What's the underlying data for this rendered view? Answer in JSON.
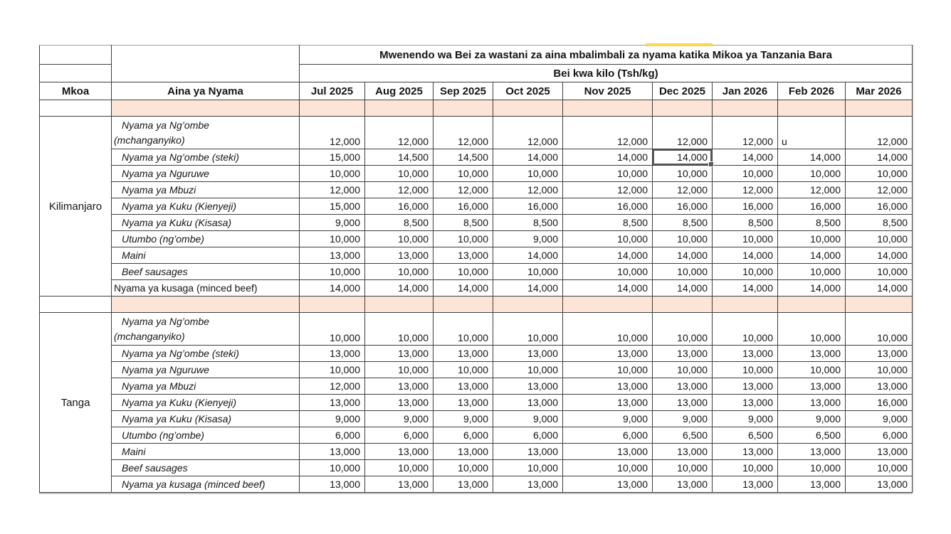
{
  "title": "Mwenendo wa Bei za wastani za aina mbalimbali za nyama katika Mikoa ya Tanzania Bara",
  "subtitle": "Bei kwa kilo (Tsh/kg)",
  "columns": {
    "region": "Mkoa",
    "item": "Aina ya Nyama",
    "months": [
      "Jul 2025",
      "Aug 2025",
      "Sep 2025",
      "Oct 2025",
      "Nov 2025",
      "Dec 2025",
      "Jan 2026",
      "Feb 2026",
      "Mar 2026"
    ]
  },
  "colors": {
    "band_fill": "#FCE4D6",
    "highlight_yellow": "#FFD951",
    "selection_border": "#595959",
    "grid_border": "#3f3f3f"
  },
  "selection": {
    "region_index": 0,
    "item_index": 1,
    "month_index": 5
  },
  "regions": [
    {
      "name": "Kilimanjaro",
      "items": [
        {
          "lines": [
            "Nyama ya Ng’ombe",
            "(mchanganyiko)"
          ],
          "italic": true,
          "values": [
            "12,000",
            "12,000",
            "12,000",
            "12,000",
            "12,000",
            "12,000",
            "12,000",
            "u",
            "12,000"
          ]
        },
        {
          "lines": [
            "Nyama ya Ng’ombe (steki)"
          ],
          "italic": true,
          "values": [
            "15,000",
            "14,500",
            "14,500",
            "14,000",
            "14,000",
            "14,000",
            "14,000",
            "14,000",
            "14,000"
          ]
        },
        {
          "lines": [
            "Nyama ya Nguruwe"
          ],
          "italic": true,
          "values": [
            "10,000",
            "10,000",
            "10,000",
            "10,000",
            "10,000",
            "10,000",
            "10,000",
            "10,000",
            "10,000"
          ]
        },
        {
          "lines": [
            "Nyama ya Mbuzi"
          ],
          "italic": true,
          "values": [
            "12,000",
            "12,000",
            "12,000",
            "12,000",
            "12,000",
            "12,000",
            "12,000",
            "12,000",
            "12,000"
          ]
        },
        {
          "lines": [
            "Nyama ya Kuku (Kienyeji)"
          ],
          "italic": true,
          "values": [
            "15,000",
            "16,000",
            "16,000",
            "16,000",
            "16,000",
            "16,000",
            "16,000",
            "16,000",
            "16,000"
          ]
        },
        {
          "lines": [
            "Nyama ya Kuku (Kisasa)"
          ],
          "italic": true,
          "values": [
            "9,000",
            "8,500",
            "8,500",
            "8,500",
            "8,500",
            "8,500",
            "8,500",
            "8,500",
            "8,500"
          ]
        },
        {
          "lines": [
            "Utumbo (ng’ombe)"
          ],
          "italic": true,
          "values": [
            "10,000",
            "10,000",
            "10,000",
            "9,000",
            "10,000",
            "10,000",
            "10,000",
            "10,000",
            "10,000"
          ]
        },
        {
          "lines": [
            "Maini"
          ],
          "italic": true,
          "values": [
            "13,000",
            "13,000",
            "13,000",
            "14,000",
            "14,000",
            "14,000",
            "14,000",
            "14,000",
            "14,000"
          ]
        },
        {
          "lines": [
            "Beef sausages"
          ],
          "italic": true,
          "values": [
            "10,000",
            "10,000",
            "10,000",
            "10,000",
            "10,000",
            "10,000",
            "10,000",
            "10,000",
            "10,000"
          ]
        },
        {
          "lines": [
            "Nyama ya kusaga (minced beef)"
          ],
          "italic": false,
          "values": [
            "14,000",
            "14,000",
            "14,000",
            "14,000",
            "14,000",
            "14,000",
            "14,000",
            "14,000",
            "14,000"
          ]
        }
      ]
    },
    {
      "name": "Tanga",
      "items": [
        {
          "lines": [
            "Nyama ya Ng’ombe",
            "(mchanganyiko)"
          ],
          "italic": true,
          "values": [
            "10,000",
            "10,000",
            "10,000",
            "10,000",
            "10,000",
            "10,000",
            "10,000",
            "10,000",
            "10,000"
          ]
        },
        {
          "lines": [
            "Nyama ya Ng’ombe (steki)"
          ],
          "italic": true,
          "values": [
            "13,000",
            "13,000",
            "13,000",
            "13,000",
            "13,000",
            "13,000",
            "13,000",
            "13,000",
            "13,000"
          ]
        },
        {
          "lines": [
            "Nyama ya Nguruwe"
          ],
          "italic": true,
          "values": [
            "10,000",
            "10,000",
            "10,000",
            "10,000",
            "10,000",
            "10,000",
            "10,000",
            "10,000",
            "10,000"
          ]
        },
        {
          "lines": [
            "Nyama ya Mbuzi"
          ],
          "italic": true,
          "values": [
            "12,000",
            "13,000",
            "13,000",
            "13,000",
            "13,000",
            "13,000",
            "13,000",
            "13,000",
            "13,000"
          ]
        },
        {
          "lines": [
            "Nyama ya Kuku (Kienyeji)"
          ],
          "italic": true,
          "values": [
            "13,000",
            "13,000",
            "13,000",
            "13,000",
            "13,000",
            "13,000",
            "13,000",
            "13,000",
            "16,000"
          ]
        },
        {
          "lines": [
            "Nyama ya Kuku (Kisasa)"
          ],
          "italic": true,
          "values": [
            "9,000",
            "9,000",
            "9,000",
            "9,000",
            "9,000",
            "9,000",
            "9,000",
            "9,000",
            "9,000"
          ]
        },
        {
          "lines": [
            "Utumbo (ng’ombe)"
          ],
          "italic": true,
          "values": [
            "6,000",
            "6,000",
            "6,000",
            "6,000",
            "6,000",
            "6,500",
            "6,500",
            "6,500",
            "6,000"
          ]
        },
        {
          "lines": [
            "Maini"
          ],
          "italic": true,
          "values": [
            "13,000",
            "13,000",
            "13,000",
            "13,000",
            "13,000",
            "13,000",
            "13,000",
            "13,000",
            "13,000"
          ]
        },
        {
          "lines": [
            "Beef sausages"
          ],
          "italic": true,
          "values": [
            "10,000",
            "10,000",
            "10,000",
            "10,000",
            "10,000",
            "10,000",
            "10,000",
            "10,000",
            "10,000"
          ]
        },
        {
          "lines": [
            "Nyama ya kusaga (minced beef)"
          ],
          "italic": true,
          "values": [
            "13,000",
            "13,000",
            "13,000",
            "13,000",
            "13,000",
            "13,000",
            "13,000",
            "13,000",
            "13,000"
          ]
        }
      ]
    }
  ]
}
